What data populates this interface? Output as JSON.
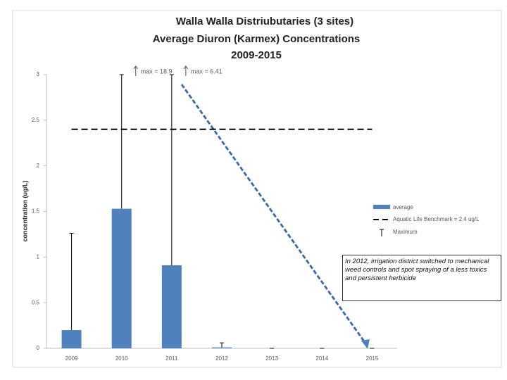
{
  "chart_data": {
    "type": "bar",
    "title": [
      "Walla Walla Distriubutaries (3 sites)",
      "Average Diuron (Karmex) Concentrations",
      "2009-2015"
    ],
    "y_label": "concentration (ug/L)",
    "categories": [
      "2009",
      "2010",
      "2011",
      "2012",
      "2013",
      "2014",
      "2015"
    ],
    "series": [
      {
        "name": "average",
        "color": "#4f81bd",
        "values": [
          0.2,
          1.53,
          0.91,
          0.01,
          0,
          0,
          0
        ]
      }
    ],
    "maximum": {
      "name": "Maximum",
      "color": "#000000",
      "values": [
        1.26,
        18.9,
        6.41,
        0.06,
        0,
        0,
        0
      ],
      "value_labels": [
        null,
        "max = 18.9",
        "max = 6.41",
        null,
        null,
        null,
        null
      ]
    },
    "benchmark": {
      "name": "Aquatic Life Benchmark = 2.4 ug/L",
      "value": 2.4,
      "color": "#000000"
    },
    "annotations": [
      "In 2012, irrigation district switched to mechanical weed controls and spot spraying of a less toxics and persistent herbicide"
    ],
    "ylim": [
      0,
      3
    ],
    "yticks": [
      0,
      0.5,
      1,
      1.5,
      2,
      2.5,
      3
    ],
    "grid": false,
    "legend": "right"
  }
}
